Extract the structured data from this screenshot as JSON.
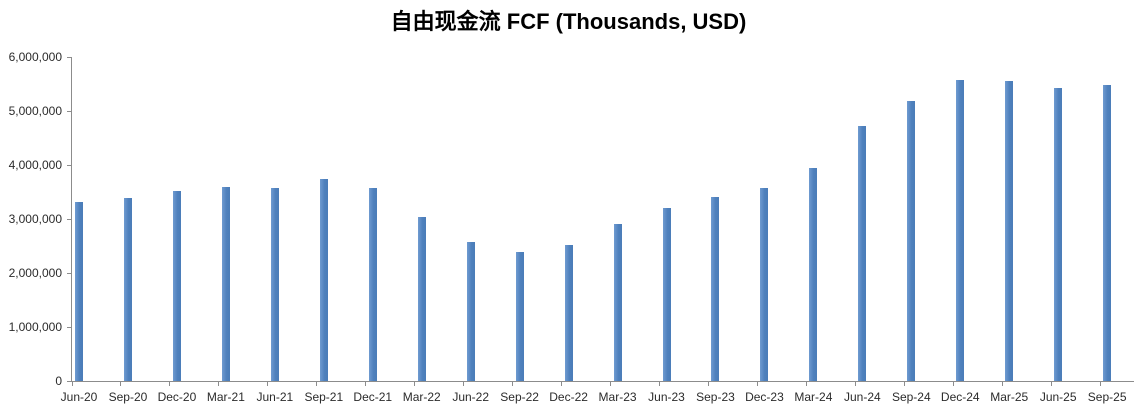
{
  "chart_data": {
    "type": "bar",
    "title": "自由现金流 FCF (Thousands, USD)",
    "xlabel": "",
    "ylabel": "",
    "categories": [
      "Jun-20",
      "Sep-20",
      "Dec-20",
      "Mar-21",
      "Jun-21",
      "Sep-21",
      "Dec-21",
      "Mar-22",
      "Jun-22",
      "Sep-22",
      "Dec-22",
      "Mar-23",
      "Jun-23",
      "Sep-23",
      "Dec-23",
      "Mar-24",
      "Jun-24",
      "Sep-24",
      "Dec-24",
      "Mar-25",
      "Jun-25",
      "Sep-25"
    ],
    "values": [
      3320000,
      3380000,
      3510000,
      3600000,
      3580000,
      3750000,
      3580000,
      3040000,
      2570000,
      2390000,
      2520000,
      2900000,
      3200000,
      3400000,
      3580000,
      3950000,
      4730000,
      5180000,
      5580000,
      5560000,
      5430000,
      5480000
    ],
    "ylim": [
      0,
      6000000
    ],
    "ytick_interval": 1000000,
    "ytick_labels": [
      "0",
      "1,000,000",
      "2,000,000",
      "3,000,000",
      "4,000,000",
      "5,000,000",
      "6,000,000"
    ],
    "grid": false,
    "legend_position": "none",
    "bar_color": "#4F81BD",
    "axis_color": "#8C8C8C",
    "label_color": "#2B2B2B"
  }
}
